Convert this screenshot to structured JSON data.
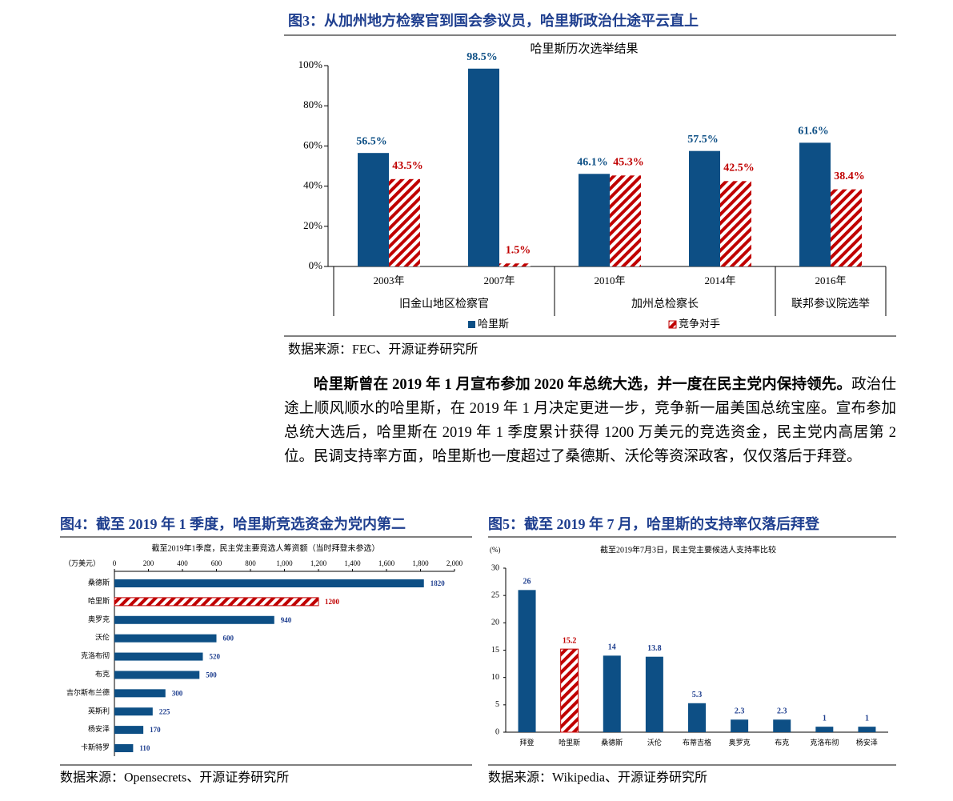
{
  "chart_data": [
    {
      "type": "bar",
      "title": "图3：从加州地方检察官到国会参议员，哈里斯政治仕途平云直上",
      "subtitle": "哈里斯历次选举结果",
      "source": "数据来源：FEC、开源证券研究所",
      "groups": [
        {
          "label": "旧金山地区检察官",
          "categories": [
            "2003年",
            "2007年"
          ]
        },
        {
          "label": "加州总检察长",
          "categories": [
            "2010年",
            "2014年"
          ]
        },
        {
          "label": "联邦参议院选举",
          "categories": [
            "2016年"
          ]
        }
      ],
      "series": [
        {
          "name": "哈里斯",
          "color": "#0d4f85",
          "pattern": "solid",
          "values": [
            56.5,
            98.5,
            46.1,
            57.5,
            61.6
          ],
          "value_labels": [
            "56.5%",
            "98.5%",
            "46.1%",
            "57.5%",
            "61.6%"
          ]
        },
        {
          "name": "竞争对手",
          "color": "#c00000",
          "pattern": "hatch",
          "values": [
            43.5,
            1.5,
            45.3,
            42.5,
            38.4
          ],
          "value_labels": [
            "43.5%",
            "1.5%",
            "45.3%",
            "42.5%",
            "38.4%"
          ]
        }
      ],
      "ylim": [
        0,
        100
      ],
      "yticks": [
        {
          "value": 0,
          "label": "0%"
        },
        {
          "value": 20,
          "label": "20%"
        },
        {
          "value": 40,
          "label": "40%"
        },
        {
          "value": 60,
          "label": "60%"
        },
        {
          "value": 80,
          "label": "80%"
        },
        {
          "value": 100,
          "label": "100%"
        }
      ],
      "legend": "bottom"
    },
    {
      "type": "barh",
      "title": "图4：截至 2019 年 1 季度，哈里斯竞选资金为党内第二",
      "subtitle": "截至2019年1季度，民主党主要竞选人筹资额（当时拜登未参选）",
      "unit": "（万美元）",
      "source": "数据来源：Opensecrets、开源证券研究所",
      "categories": [
        "桑德斯",
        "哈里斯",
        "奥罗克",
        "沃伦",
        "克洛布彻",
        "布克",
        "吉尔斯布兰德",
        "英斯利",
        "杨安泽",
        "卡斯特罗"
      ],
      "values": [
        1820,
        1200,
        940,
        600,
        520,
        500,
        300,
        225,
        170,
        110
      ],
      "color": "#0d4f85",
      "highlight": {
        "index": 1,
        "color": "#c00000",
        "pattern": "hatch"
      },
      "xlim": [
        0,
        2000
      ],
      "xticks": [
        0,
        200,
        400,
        600,
        800,
        {
          "value": 1000,
          "label": "1,000"
        },
        {
          "value": 1200,
          "label": "1,200"
        },
        {
          "value": 1400,
          "label": "1,400"
        },
        {
          "value": 1600,
          "label": "1,600"
        },
        {
          "value": 1800,
          "label": "1,800"
        },
        {
          "value": 2000,
          "label": "2,000"
        }
      ]
    },
    {
      "type": "bar",
      "title": "图5：截至 2019 年 7 月，哈里斯的支持率仅落后拜登",
      "subtitle": "截至2019年7月3日，民主党主要候选人支持率比较",
      "unit": "(%)",
      "source": "数据来源：Wikipedia、开源证券研究所",
      "categories": [
        "拜登",
        "哈里斯",
        "桑德斯",
        "沃伦",
        "布蒂吉格",
        "奥罗克",
        "布克",
        "克洛布彻",
        "杨安泽"
      ],
      "values": [
        26,
        15.2,
        14,
        13.8,
        5.3,
        2.3,
        2.3,
        1,
        1
      ],
      "color": "#0d4f85",
      "highlight": {
        "index": 1,
        "color": "#c00000",
        "pattern": "hatch"
      },
      "ylim": [
        0,
        30
      ],
      "yticks": [
        0,
        5,
        10,
        15,
        20,
        25,
        30
      ]
    }
  ],
  "paragraph": {
    "lead": "哈里斯曾在 2019 年 1 月宣布参加 2020 年总统大选，并一度在民主党内保持领先。",
    "body": "政治仕途上顺风顺水的哈里斯，在 2019 年 1 月决定更进一步，竞争新一届美国总统宝座。宣布参加总统大选后，哈里斯在 2019 年 1 季度累计获得 1200 万美元的竞选资金，民主党内高居第 2 位。民调支持率方面，哈里斯也一度超过了桑德斯、沃伦等资深政客，仅仅落后于拜登。"
  }
}
